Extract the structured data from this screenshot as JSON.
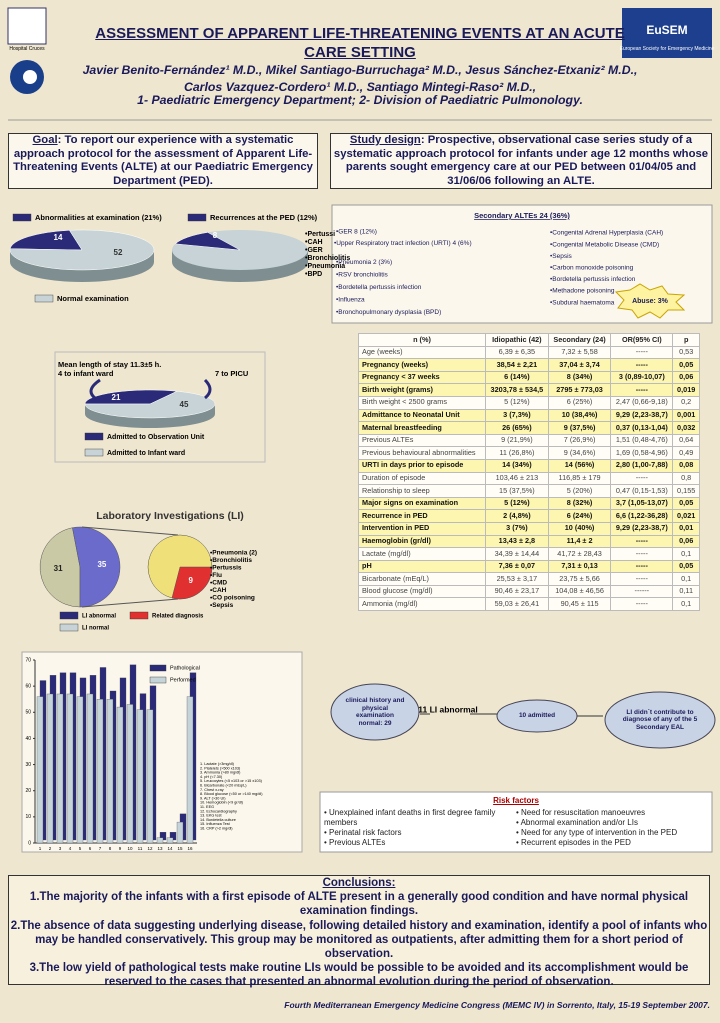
{
  "header": {
    "title": "ASSESSMENT OF APPARENT LIFE-THREATENING EVENTS AT AN ACUTE CARE SETTING",
    "authors": "Javier Benito-Fernández¹ M.D., Mikel Santiago-Burruchaga² M.D., Jesus Sánchez-Etxaniz² M.D., Carlos Vazquez-Cordero¹ M.D., Santiago Mintegi-Raso² M.D.,",
    "affiliations": "1- Paediatric Emergency Department; 2- Division of Paediatric Pulmonology.",
    "left_logo": "Hospital Cruces",
    "right_logo": "EuSEM",
    "right_logo_sub": "European Society for Emergency Medicine"
  },
  "goal": {
    "label": "Goal",
    "text": ": To report our experience with a systematic approach protocol for the assessment of Apparent Life-Threatening Events (ALTE) at our Paediatric Emergency Department (PED)."
  },
  "study_design": {
    "label": "Study design",
    "text": ": Prospective, observational case series study of a systematic approach protocol for infants under age 12 months whose parents sought emergency care at our PED between 01/04/05 and 31/06/06 following an ALTE."
  },
  "exam_pies": {
    "legend_abnormal": "Abnormalities at examination (21%)",
    "legend_recurrence": "Recurrences at the PED (12%)",
    "legend_normal": "Normal examination",
    "abnormal": 14,
    "normal": 52,
    "recurrence": 8,
    "recurrence_causes": [
      "•Pertussi",
      "•CAH",
      "•GER",
      "•Bronchiolitis",
      "•Pneumonia",
      "•BPD"
    ]
  },
  "stay": {
    "note": "Mean length of stay 11.3±5 h.",
    "note2": "4 to infant ward",
    "picu": "7 to PICU",
    "values": [
      21,
      45
    ],
    "legend": [
      "Admitted to Observation Unit",
      "Admitted to Infant ward"
    ]
  },
  "lab": {
    "title": "Laboratory Investigations (LI)",
    "abnormal": 31,
    "normal": 35,
    "related": 9,
    "diagnoses": [
      "•Pneumonia (2)",
      "•Bronchiolitis",
      "•Pertussis",
      "•Flu",
      "•CMD",
      "•CAH",
      "•CO poisoning",
      "•Sepsis"
    ],
    "legend": [
      "LI abnormal",
      "Related diagnosis",
      "LI normal"
    ]
  },
  "tests_chart": {
    "ylim": [
      0,
      70
    ],
    "yticks": [
      0,
      10,
      20,
      30,
      40,
      50,
      60,
      70
    ],
    "categories": [
      "1",
      "2",
      "3",
      "4",
      "5",
      "6",
      "7",
      "8",
      "9",
      "10",
      "11",
      "12",
      "13",
      "14",
      "15",
      "16"
    ],
    "series": [
      {
        "name": "Pathological",
        "color": "#2a2a78",
        "values": [
          61,
          63,
          64,
          64,
          62,
          63,
          66,
          57,
          62,
          67,
          56,
          59,
          3,
          3,
          10,
          64
        ]
      },
      {
        "name": "Performed",
        "color": "#c4d4d8",
        "values": [
          56,
          57,
          57,
          57,
          56,
          57,
          55,
          55,
          52,
          53,
          51,
          51,
          2,
          2,
          8,
          56
        ]
      }
    ],
    "tests": [
      "1. Lactate (>3mg/dl)",
      "2. Platelets (>500 x103)",
      "3. Ammonia (>80 mg/dl)",
      "4. pH (<7.30)",
      "5. Leucocytes (<5 x103 or >15 x103)",
      "6. Bicarbonate (<20 mEq/L)",
      "7. Chest x-ray",
      "8. Blood glucose (<50 or >140 mg/dl)",
      "9. ALT (>30 UI)",
      "10. Hemoglobin (<9 gr/dl)",
      "11. EEG",
      "12. Echocardiography",
      "13. EKG test",
      "14. Bordetella culture",
      "15. Influenza Test",
      "16. CRP (>2 mg/dl)"
    ]
  },
  "secondary": {
    "title": "Secondary ALTEs 24 (36%)",
    "left": [
      "•GER 8 (12%)",
      "•Upper Respiratory tract infection (URTI) 4 (6%)",
      "•Pneumonia 2 (3%)",
      "•RSV bronchiolitis",
      "•Bordetella pertussis infection",
      "•Influenza",
      "•Bronchopulmonary dysplasia (BPD)"
    ],
    "right": [
      "•Congenital Adrenal Hyperplasia (CAH)",
      "•Congenital Metabolic Disease (CMD)",
      "•Sepsis",
      "•Carbon monoxide poisoning",
      "•Bordetella pertussis infection",
      "•Methadone poisoning",
      "•Subdural haematoma"
    ],
    "abuse": "Abuse: 3%"
  },
  "table": {
    "header": [
      "n (%)",
      "Idiopathic (42)",
      "Secondary (24)",
      "OR(95% CI)",
      "p"
    ],
    "rows": [
      [
        "Age (weeks)",
        "6,39 ± 6,35",
        "7,32 ± 5,58",
        "-----",
        "0,53"
      ],
      [
        "Pregnancy (weeks)",
        "38,54 ± 2,21",
        "37,04 ± 3,74",
        "-----",
        "0,05"
      ],
      [
        "Pregnancy < 37 weeks",
        "6 (14%)",
        "8 (34%)",
        "3 (0,89-10,07)",
        "0,06"
      ],
      [
        "Birth weight (grams)",
        "3203,78 ± 534,5",
        "2795 ± 773,03",
        "-----",
        "0,019"
      ],
      [
        "Birth weight < 2500 grams",
        "5 (12%)",
        "6 (25%)",
        "2,47 (0,66-9,18)",
        "0,2"
      ],
      [
        "Admittance to Neonatal Unit",
        "3 (7,3%)",
        "10 (38,4%)",
        "9,29 (2,23-38,7)",
        "0,001"
      ],
      [
        "Maternal breastfeeding",
        "26 (65%)",
        "9 (37,5%)",
        "0,37 (0,13-1,04)",
        "0,032"
      ],
      [
        "Previous ALTEs",
        "9 (21,9%)",
        "7 (26,9%)",
        "1,51 (0,48-4,76)",
        "0,64"
      ],
      [
        "Previous behavioural abnormalities",
        "11 (26,8%)",
        "9 (34,6%)",
        "1,69 (0,58-4,96)",
        "0,49"
      ],
      [
        "URTI in days prior to episode",
        "14 (34%)",
        "14 (56%)",
        "2,80 (1,00-7,88)",
        "0,08"
      ],
      [
        "Duration of episode",
        "103,46 ± 213",
        "116,85 ± 179",
        "-----",
        "0,8"
      ],
      [
        "Relationship to sleep",
        "15 (37,5%)",
        "5 (20%)",
        "0,47 (0,15-1,53)",
        "0,155"
      ],
      [
        "Major signs on examination",
        "5 (12%)",
        "8 (32%)",
        "3,7 (1,05-13,07)",
        "0,05"
      ],
      [
        "Recurrence in PED",
        "2 (4,8%)",
        "6 (24%)",
        "6,6 (1,22-36,28)",
        "0,021"
      ],
      [
        "Intervention in PED",
        "3 (7%)",
        "10 (40%)",
        "9,29 (2,23-38,7)",
        "0,01"
      ],
      [
        "Haemoglobin (gr/dl)",
        "13,43 ± 2,8",
        "11,4 ± 2",
        "-----",
        "0,06"
      ],
      [
        "Lactate (mg/dl)",
        "34,39 ± 14,44",
        "41,72 ± 28,43",
        "-----",
        "0,1"
      ],
      [
        "pH",
        "7,36 ± 0,07",
        "7,31 ± 0,13",
        "-----",
        "0,05"
      ],
      [
        "Bicarbonate (mEq/L)",
        "25,53 ± 3,17",
        "23,75 ± 5,66",
        "-----",
        "0,1"
      ],
      [
        "Blood glucose (mg/dl)",
        "90,46 ± 23,17",
        "104,08 ± 46,56",
        "------",
        "0,11"
      ],
      [
        "Ammonia (mg/dl)",
        "59,03 ± 26,41",
        "90,45 ± 115",
        "-----",
        "0,1"
      ]
    ],
    "highlight": [
      1,
      2,
      3,
      5,
      6,
      9,
      12,
      13,
      14,
      15,
      17
    ]
  },
  "flow": {
    "step1": "clinical history and physical examination normal: 29",
    "step2": "11 LI abnormal",
    "step3": "10 admitted",
    "step4": "LI didn´t contribute to diagnose of any of the 5 Secondary EAL"
  },
  "risk": {
    "title": "Risk factors",
    "left": [
      "• Unexplained infant deaths in first degree family members",
      "• Perinatal risk factors",
      "• Previous ALTEs"
    ],
    "right": [
      "• Need for resuscitation manoeuvres",
      "• Abnormal examination and/or LIs",
      "• Need for any type of intervention in the PED",
      "• Recurrent episodes in the PED"
    ]
  },
  "conclusions": {
    "title": "Conclusions:",
    "items": [
      "1.The majority of the infants with a first episode of ALTE present in a generally good condition and have normal physical examination findings.",
      "2.The absence of data suggesting underlying disease, following detailed history and examination, identify a pool of infants who may be handled conservatively. This group may be monitored as outpatients, after admitting them for a short period of observation.",
      "3.The low yield of pathological tests make routine LIs would be possible to be avoided and its accomplishment would be reserved to the cases that presented an abnormal evolution during the period of observation."
    ]
  },
  "footer": "Fourth Mediterranean Emergency Medicine Congress (MEMC IV) in Sorrento, Italy, 15-19 September 2007."
}
